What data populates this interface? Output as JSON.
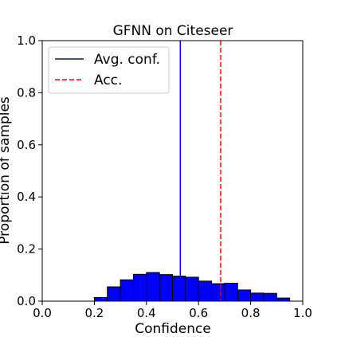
{
  "chart_data": {
    "type": "bar",
    "title": "GFNN on Citeseer",
    "xlabel": "Confidence",
    "ylabel": "Proportion of samples",
    "xlim": [
      0.0,
      1.0
    ],
    "ylim": [
      0.0,
      1.0
    ],
    "xticks": [
      "0.0",
      "0.2",
      "0.4",
      "0.6",
      "0.8",
      "1.0"
    ],
    "yticks": [
      "0.0",
      "0.2",
      "0.4",
      "0.6",
      "0.8",
      "1.0"
    ],
    "bin_width": 0.05,
    "bins": [
      {
        "x": 0.2,
        "value": 0.014
      },
      {
        "x": 0.25,
        "value": 0.055
      },
      {
        "x": 0.3,
        "value": 0.082
      },
      {
        "x": 0.35,
        "value": 0.103
      },
      {
        "x": 0.4,
        "value": 0.11
      },
      {
        "x": 0.45,
        "value": 0.102
      },
      {
        "x": 0.5,
        "value": 0.096
      },
      {
        "x": 0.55,
        "value": 0.092
      },
      {
        "x": 0.6,
        "value": 0.077
      },
      {
        "x": 0.65,
        "value": 0.067
      },
      {
        "x": 0.7,
        "value": 0.069
      },
      {
        "x": 0.75,
        "value": 0.043
      },
      {
        "x": 0.8,
        "value": 0.031
      },
      {
        "x": 0.85,
        "value": 0.03
      },
      {
        "x": 0.9,
        "value": 0.012
      }
    ],
    "bar_color": "#0000ff",
    "reference_lines": [
      {
        "name": "Avg. conf.",
        "x": 0.53,
        "style": "solid",
        "color": "#0000ff"
      },
      {
        "name": "Acc.",
        "x": 0.685,
        "style": "dashed",
        "color": "#ff0000"
      }
    ],
    "legend_position": "top-left",
    "grid": false
  }
}
